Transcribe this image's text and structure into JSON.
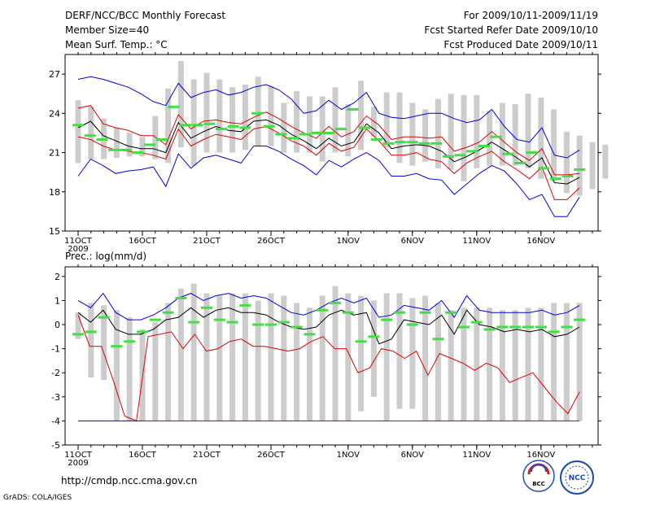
{
  "header": {
    "title": "DERF/NCC/BCC Monthly Forecast",
    "member_size": "Member Size=40",
    "top_variable": "Mean Surf. Temp.: °C",
    "period": "For 2009/10/11-2009/11/19",
    "fcst_started": "Fcst Started Refer Date 2009/10/10",
    "fcst_produced": "Fcst Produced Date 2009/10/11"
  },
  "footer": {
    "url": "http://cmdp.ncc.cma.gov.cn",
    "grads": "GrADS: COLA/IGES",
    "logo_bcc": "BCC",
    "logo_ncc": "NCC"
  },
  "colors": {
    "upper": "#0000e0",
    "mean": "#000000",
    "lower": "#e00000",
    "green": "#40e040",
    "bar": "#cccccc"
  },
  "chart_data": [
    {
      "type": "line",
      "title": "Mean Surf. Temp.: °C",
      "xlabel": "",
      "ylabel": "",
      "x_start_day": 1,
      "n_days": 40,
      "x_ticks": [
        {
          "day": 1,
          "label": "11OCT"
        },
        {
          "day": 6,
          "label": "16OCT"
        },
        {
          "day": 11,
          "label": "21OCT"
        },
        {
          "day": 16,
          "label": "26OCT"
        },
        {
          "day": 22,
          "label": "1NOV"
        },
        {
          "day": 27,
          "label": "6NOV"
        },
        {
          "day": 32,
          "label": "11NOV"
        },
        {
          "day": 37,
          "label": "16NOV"
        }
      ],
      "year_label": "2009",
      "ylim": [
        15,
        28.5
      ],
      "y_ticks": [
        15,
        18,
        21,
        24,
        27
      ],
      "series": [
        {
          "name": "upper",
          "color": "#0000e0",
          "values": [
            26.6,
            26.8,
            26.6,
            26.3,
            26.0,
            25.5,
            24.9,
            24.6,
            26.3,
            25.2,
            25.6,
            25.8,
            25.4,
            25.6,
            26.0,
            26.2,
            25.8,
            25.1,
            24.0,
            24.2,
            25.0,
            24.3,
            24.8,
            25.6,
            24.0,
            23.7,
            23.6,
            23.8,
            24.0,
            24.0,
            23.6,
            23.3,
            23.5,
            24.3,
            23.0,
            22.0,
            21.8,
            22.9,
            20.8,
            20.6,
            21.2
          ]
        },
        {
          "name": "red_high",
          "color": "#e00000",
          "values": [
            24.4,
            24.6,
            23.2,
            22.9,
            22.7,
            22.3,
            22.3,
            21.6,
            23.9,
            22.8,
            23.4,
            23.5,
            23.3,
            23.2,
            23.7,
            24.1,
            23.6,
            23.0,
            22.5,
            22.1,
            23.0,
            22.2,
            22.6,
            23.8,
            23.1,
            22.0,
            22.2,
            22.2,
            22.1,
            22.2,
            21.1,
            21.4,
            21.8,
            22.6,
            21.8,
            21.0,
            20.4,
            21.3,
            19.3,
            19.3,
            19.4
          ]
        },
        {
          "name": "mean",
          "color": "#000000",
          "values": [
            22.9,
            23.4,
            22.3,
            21.9,
            21.5,
            21.3,
            21.3,
            21.0,
            23.3,
            22.1,
            22.6,
            23.0,
            22.7,
            22.6,
            23.4,
            23.5,
            23.1,
            22.4,
            21.9,
            21.3,
            22.1,
            21.5,
            21.8,
            23.2,
            22.5,
            21.3,
            21.5,
            21.6,
            21.5,
            21.1,
            20.3,
            20.7,
            21.2,
            21.8,
            21.2,
            20.6,
            19.9,
            20.6,
            18.7,
            18.6,
            19.1
          ]
        },
        {
          "name": "red_low",
          "color": "#e00000",
          "values": [
            22.2,
            22.0,
            21.5,
            21.2,
            21.1,
            21.0,
            20.8,
            20.5,
            22.8,
            21.5,
            22.0,
            22.4,
            22.2,
            22.0,
            22.8,
            23.0,
            22.5,
            21.9,
            21.5,
            20.8,
            21.7,
            21.1,
            21.4,
            22.8,
            21.9,
            20.8,
            20.8,
            21.0,
            20.5,
            20.3,
            19.4,
            20.2,
            20.7,
            21.1,
            20.3,
            19.7,
            19.0,
            19.9,
            17.4,
            17.4,
            18.3
          ]
        },
        {
          "name": "lower",
          "color": "#0000e0",
          "values": [
            19.2,
            20.5,
            20.0,
            19.4,
            19.6,
            19.7,
            19.9,
            18.4,
            20.9,
            19.8,
            20.6,
            20.8,
            20.5,
            20.2,
            21.5,
            21.5,
            21.1,
            20.5,
            20.0,
            19.3,
            20.4,
            19.9,
            20.5,
            21.0,
            20.4,
            19.2,
            19.2,
            19.4,
            19.0,
            18.9,
            17.8,
            18.6,
            19.4,
            20.0,
            19.6,
            18.6,
            17.4,
            17.8,
            16.1,
            16.1,
            17.6
          ]
        }
      ],
      "green_marks": [
        23.1,
        22.3,
        22.0,
        21.2,
        21.2,
        21.0,
        21.6,
        22.0,
        24.5,
        23.1,
        23.1,
        23.2,
        22.8,
        23.0,
        22.9,
        24.0,
        23.0,
        22.4,
        22.1,
        22.4,
        22.5,
        22.5,
        22.8,
        24.3,
        22.9,
        22.0,
        21.7,
        21.8,
        21.8,
        21.7,
        21.7,
        20.7,
        20.8,
        21.1,
        21.5,
        22.2,
        20.9,
        20.2,
        21.0,
        19.8,
        19.0,
        19.2,
        19.7
      ],
      "bars": [
        [
          20.2,
          25.0
        ],
        [
          20.5,
          24.5
        ],
        [
          20.5,
          23.6
        ],
        [
          20.6,
          22.9
        ],
        [
          20.7,
          22.5
        ],
        [
          20.7,
          22.2
        ],
        [
          20.5,
          23.8
        ],
        [
          20.2,
          25.9
        ],
        [
          21.4,
          28.0
        ],
        [
          20.0,
          26.6
        ],
        [
          21.0,
          27.1
        ],
        [
          21.0,
          26.6
        ],
        [
          21.0,
          26.0
        ],
        [
          21.2,
          26.2
        ],
        [
          21.5,
          26.8
        ],
        [
          21.5,
          26.1
        ],
        [
          21.0,
          24.8
        ],
        [
          21.0,
          25.7
        ],
        [
          21.0,
          25.3
        ],
        [
          20.3,
          25.3
        ],
        [
          21.0,
          26.0
        ],
        [
          20.7,
          24.7
        ],
        [
          21.2,
          26.5
        ],
        [
          22.2,
          24.5
        ],
        [
          21.4,
          25.6
        ],
        [
          20.2,
          25.6
        ],
        [
          20.0,
          24.8
        ],
        [
          20.3,
          24.3
        ],
        [
          19.8,
          25.1
        ],
        [
          19.7,
          25.5
        ],
        [
          18.8,
          25.4
        ],
        [
          19.8,
          25.4
        ],
        [
          20.0,
          24.2
        ],
        [
          20.0,
          24.8
        ],
        [
          20.0,
          24.7
        ],
        [
          19.8,
          25.5
        ],
        [
          19.0,
          25.2
        ],
        [
          18.8,
          24.3
        ],
        [
          17.9,
          22.6
        ],
        [
          17.7,
          22.3
        ],
        [
          18.2,
          21.8
        ],
        [
          19.0,
          21.6
        ]
      ]
    },
    {
      "type": "line",
      "title": "Prec.: log(mm/d)",
      "xlabel": "",
      "ylabel": "",
      "x_start_day": 1,
      "n_days": 40,
      "x_ticks": [
        {
          "day": 1,
          "label": "11OCT"
        },
        {
          "day": 6,
          "label": "16OCT"
        },
        {
          "day": 11,
          "label": "21OCT"
        },
        {
          "day": 16,
          "label": "26OCT"
        },
        {
          "day": 22,
          "label": "1NOV"
        },
        {
          "day": 27,
          "label": "6NOV"
        },
        {
          "day": 32,
          "label": "11NOV"
        },
        {
          "day": 37,
          "label": "16NOV"
        }
      ],
      "year_label": "2009",
      "ylim": [
        -5,
        2.4
      ],
      "y_ticks": [
        -5,
        -4,
        -3,
        -2,
        -1,
        0,
        1,
        2
      ],
      "series": [
        {
          "name": "upper",
          "color": "#0000e0",
          "values": [
            1.0,
            0.7,
            1.3,
            0.5,
            0.2,
            0.2,
            0.4,
            0.7,
            1.1,
            1.3,
            1.0,
            1.2,
            1.3,
            1.1,
            1.2,
            1.1,
            0.8,
            0.5,
            0.4,
            0.6,
            0.9,
            1.1,
            0.9,
            1.1,
            0.3,
            0.4,
            0.8,
            0.7,
            0.6,
            1.0,
            0.3,
            1.2,
            0.6,
            0.5,
            0.5,
            0.5,
            0.5,
            0.6,
            0.4,
            0.5,
            0.8
          ]
        },
        {
          "name": "mean",
          "color": "#000000",
          "values": [
            0.5,
            0.1,
            0.6,
            -0.2,
            -0.4,
            -0.4,
            -0.2,
            0.2,
            0.3,
            0.7,
            0.3,
            0.6,
            0.7,
            0.5,
            0.5,
            0.4,
            0.1,
            -0.1,
            -0.2,
            -0.1,
            0.4,
            0.6,
            0.4,
            0.5,
            -0.8,
            -0.6,
            0.2,
            0.1,
            0.0,
            0.4,
            -0.4,
            0.6,
            0.0,
            -0.1,
            -0.3,
            -0.2,
            -0.3,
            -0.2,
            -0.5,
            -0.4,
            -0.1
          ]
        },
        {
          "name": "lower_red",
          "color": "#e00000",
          "values": [
            0.4,
            -0.9,
            -0.9,
            -2.3,
            -3.8,
            -4.0,
            -0.5,
            -0.4,
            -0.3,
            -1.0,
            -0.4,
            -1.1,
            -1.0,
            -0.7,
            -0.6,
            -0.9,
            -0.9,
            -1.0,
            -1.1,
            -1.0,
            -0.7,
            -0.5,
            -1.0,
            -1.0,
            -2.0,
            -1.8,
            -1.0,
            -1.1,
            -1.4,
            -1.1,
            -2.1,
            -1.2,
            -1.4,
            -1.6,
            -1.9,
            -1.6,
            -1.8,
            -2.4,
            -2.2,
            -2.0,
            -2.6,
            -3.2,
            -3.7,
            -2.8
          ]
        },
        {
          "name": "floor",
          "color": "#0000e0",
          "values": [
            -4.0,
            -4.0,
            -4.0,
            -4.0,
            -4.0,
            -4.0
          ]
        }
      ],
      "green_marks": [
        -0.4,
        -0.3,
        0.3,
        -0.9,
        -0.7,
        -0.3,
        0.2,
        0.5,
        1.1,
        0.1,
        0.7,
        0.2,
        0.1,
        0.8,
        0.0,
        0.0,
        0.1,
        -0.1,
        -0.4,
        0.6,
        0.9,
        0.5,
        -0.7,
        -0.5,
        0.2,
        0.5,
        0.0,
        0.5,
        -0.6,
        0.5,
        -0.1,
        0.1,
        -0.2,
        -0.1,
        -0.1,
        -0.1,
        -0.1,
        -0.3,
        -0.1,
        0.2
      ],
      "bars": [
        [
          -0.6,
          0.5
        ],
        [
          -2.2,
          0.9
        ],
        [
          -2.3,
          0.8
        ],
        [
          -4.0,
          0.6
        ],
        [
          -4.0,
          0.3
        ],
        [
          -4.0,
          -0.2
        ],
        [
          -4.0,
          0.1
        ],
        [
          -4.0,
          0.9
        ],
        [
          -4.0,
          1.5
        ],
        [
          -4.0,
          1.7
        ],
        [
          -4.0,
          1.3
        ],
        [
          -4.0,
          1.2
        ],
        [
          -4.0,
          1.3
        ],
        [
          -4.0,
          1.3
        ],
        [
          -4.0,
          1.0
        ],
        [
          -4.0,
          1.3
        ],
        [
          -4.0,
          1.2
        ],
        [
          -4.0,
          0.9
        ],
        [
          -4.0,
          0.7
        ],
        [
          -4.0,
          1.2
        ],
        [
          -4.0,
          1.6
        ],
        [
          -4.0,
          1.3
        ],
        [
          -3.6,
          1.2
        ],
        [
          -3.0,
          1.0
        ],
        [
          -4.0,
          1.3
        ],
        [
          -3.5,
          1.3
        ],
        [
          -3.5,
          1.1
        ],
        [
          -4.0,
          1.2
        ],
        [
          -4.0,
          0.9
        ],
        [
          -4.0,
          0.6
        ],
        [
          -4.0,
          0.7
        ],
        [
          -4.0,
          0.7
        ],
        [
          -4.0,
          0.7
        ],
        [
          -4.0,
          0.6
        ],
        [
          -4.0,
          0.6
        ],
        [
          -4.0,
          0.7
        ],
        [
          -4.0,
          0.7
        ],
        [
          -4.0,
          0.9
        ],
        [
          -4.0,
          0.9
        ],
        [
          -4.0,
          0.9
        ]
      ]
    }
  ]
}
